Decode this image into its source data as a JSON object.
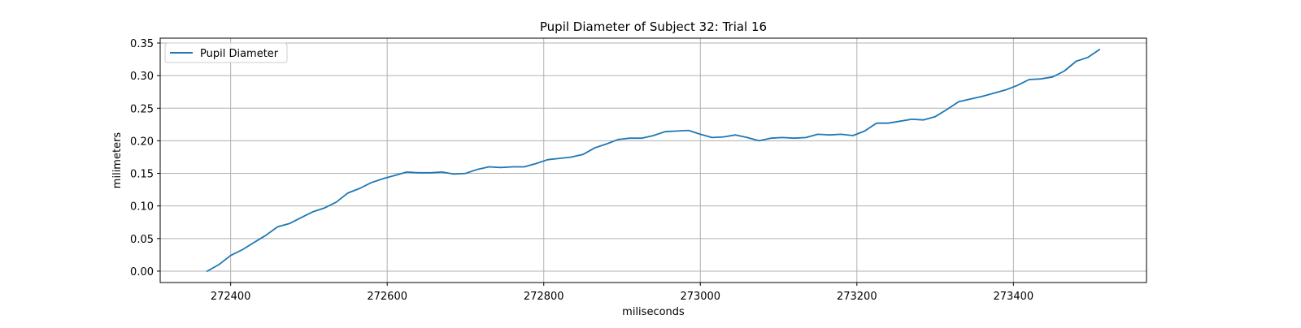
{
  "chart_data": {
    "type": "line",
    "title": "Pupil Diameter of Subject 32: Trial 16",
    "xlabel": "miliseconds",
    "ylabel": "milimeters",
    "xlim": [
      272310,
      273570
    ],
    "ylim": [
      -0.0175,
      0.3575
    ],
    "xticks": [
      272400,
      272600,
      272800,
      273000,
      273200,
      273400
    ],
    "xtick_labels": [
      "272400",
      "272600",
      "272800",
      "273000",
      "273200",
      "273400"
    ],
    "yticks": [
      0.0,
      0.05,
      0.1,
      0.15,
      0.2,
      0.25,
      0.3,
      0.35
    ],
    "ytick_labels": [
      "0.00",
      "0.05",
      "0.10",
      "0.15",
      "0.20",
      "0.25",
      "0.30",
      "0.35"
    ],
    "grid": true,
    "legend_position": "top-left",
    "series": [
      {
        "name": "Pupil Diameter",
        "color": "#1f77b4",
        "x": [
          272370,
          272385,
          272400,
          272415,
          272430,
          272445,
          272460,
          272475,
          272490,
          272505,
          272520,
          272535,
          272550,
          272565,
          272580,
          272595,
          272610,
          272625,
          272640,
          272655,
          272670,
          272685,
          272700,
          272715,
          272730,
          272745,
          272760,
          272775,
          272790,
          272805,
          272820,
          272835,
          272850,
          272865,
          272880,
          272895,
          272910,
          272925,
          272940,
          272955,
          272970,
          272985,
          273000,
          273015,
          273030,
          273045,
          273060,
          273075,
          273090,
          273105,
          273120,
          273135,
          273150,
          273165,
          273180,
          273195,
          273210,
          273225,
          273240,
          273255,
          273270,
          273285,
          273300,
          273315,
          273330,
          273345,
          273360,
          273375,
          273390,
          273405,
          273420,
          273435,
          273450,
          273465,
          273480,
          273495,
          273510
        ],
        "y": [
          0.0,
          0.01,
          0.024,
          0.033,
          0.044,
          0.055,
          0.068,
          0.073,
          0.082,
          0.091,
          0.097,
          0.106,
          0.12,
          0.127,
          0.136,
          0.142,
          0.147,
          0.152,
          0.151,
          0.151,
          0.152,
          0.149,
          0.15,
          0.156,
          0.16,
          0.159,
          0.16,
          0.16,
          0.165,
          0.171,
          0.173,
          0.175,
          0.179,
          0.189,
          0.195,
          0.202,
          0.204,
          0.204,
          0.208,
          0.214,
          0.215,
          0.216,
          0.21,
          0.205,
          0.206,
          0.209,
          0.205,
          0.2,
          0.204,
          0.205,
          0.204,
          0.205,
          0.21,
          0.209,
          0.21,
          0.208,
          0.215,
          0.227,
          0.227,
          0.23,
          0.233,
          0.232,
          0.237,
          0.248,
          0.26,
          0.264,
          0.268,
          0.273,
          0.278,
          0.285,
          0.294,
          0.295,
          0.298,
          0.307,
          0.322,
          0.328,
          0.34
        ]
      }
    ]
  }
}
